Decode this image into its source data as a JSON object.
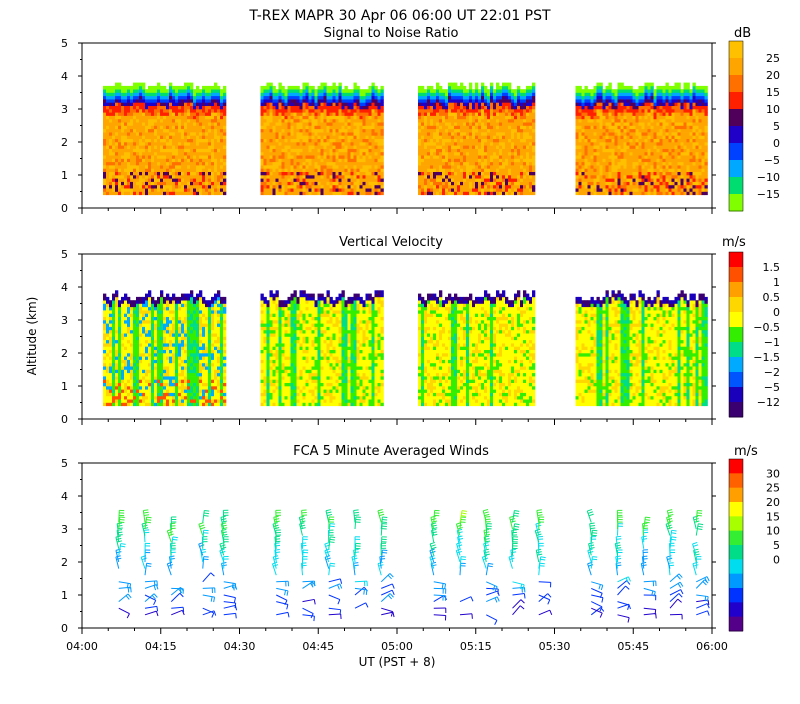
{
  "header": {
    "title": "T-REX  MAPR 30 Apr 06  06:00 UT  22:01  PST"
  },
  "x_axis": {
    "label": "UT  (PST + 8)",
    "ticks": [
      "04:00",
      "04:15",
      "04:30",
      "04:45",
      "05:00",
      "05:15",
      "05:30",
      "05:45",
      "06:00"
    ]
  },
  "y_axis": {
    "label": "Altitude (km)",
    "ticks": [
      "0",
      "1",
      "2",
      "3",
      "4",
      "5"
    ]
  },
  "colors": {
    "palette": [
      "#55007f",
      "#0000ff",
      "#00aaff",
      "#00e6aa",
      "#33ff33",
      "#99ff00",
      "#ffff00",
      "#ffd200",
      "#ffaa00",
      "#ff7f00",
      "#ff0000"
    ]
  },
  "chart_data": [
    {
      "type": "heatmap",
      "title": "Signal to Noise Ratio",
      "unit": "dB",
      "xlim": [
        "04:00",
        "06:00"
      ],
      "ylim": [
        0,
        5
      ],
      "data_gaps": [
        [
          "04:00",
          "04:07"
        ],
        [
          "04:30",
          "04:37"
        ],
        [
          "04:59",
          "05:07"
        ],
        [
          "05:29",
          "05:37"
        ]
      ],
      "colorbar": {
        "ticks": [
          "25",
          "20",
          "15",
          "10",
          "5",
          "0",
          "−5",
          "−10",
          "−15"
        ],
        "colors": [
          "#ffc000",
          "#ffa500",
          "#ff7000",
          "#ff2000",
          "#50005a",
          "#2000c8",
          "#0040ff",
          "#00a8ff",
          "#00dd70",
          "#7fff00"
        ]
      },
      "profile_top_km": 3.8,
      "typical_value_db": 20
    },
    {
      "type": "heatmap",
      "title": "Vertical Velocity",
      "unit": "m/s",
      "xlim": [
        "04:00",
        "06:00"
      ],
      "ylim": [
        0,
        5
      ],
      "data_gaps": [
        [
          "04:00",
          "04:07"
        ],
        [
          "04:30",
          "04:37"
        ],
        [
          "04:59",
          "05:07"
        ],
        [
          "05:29",
          "05:37"
        ]
      ],
      "colorbar": {
        "ticks": [
          "1.5",
          "1",
          "0.5",
          "0",
          "−0.5",
          "−1",
          "−1.5",
          "−2",
          "−5",
          "−12"
        ],
        "colors": [
          "#ff0000",
          "#ff5000",
          "#ffa000",
          "#ffd700",
          "#ffff00",
          "#33ee00",
          "#00dd88",
          "#00aaff",
          "#0055ff",
          "#1a00bb",
          "#3a0070"
        ]
      },
      "profile_top_km": 3.65,
      "typical_value_ms": 0
    },
    {
      "type": "scatter",
      "title": "FCA 5 Minute Averaged Winds",
      "unit": "m/s",
      "xlim": [
        "04:00",
        "06:00"
      ],
      "ylim": [
        0,
        5
      ],
      "colorbar": {
        "ticks": [
          "30",
          "25",
          "20",
          "15",
          "10",
          "5",
          "0"
        ],
        "colors": [
          "#ff0000",
          "#ff6000",
          "#ffa000",
          "#ffff00",
          "#a8ff00",
          "#33ee33",
          "#00dd88",
          "#00ddee",
          "#0099ff",
          "#0033ff",
          "#2200cc",
          "#550088"
        ]
      },
      "profile_times": [
        "04:07",
        "04:12",
        "04:17",
        "04:23",
        "04:27",
        "04:37",
        "04:42",
        "04:47",
        "04:52",
        "04:57",
        "05:07",
        "05:12",
        "05:17",
        "05:22",
        "05:27",
        "05:37",
        "05:42",
        "05:47",
        "05:52",
        "05:57"
      ],
      "altitudes_km": [
        0.4,
        0.6,
        0.8,
        1.0,
        1.2,
        1.4,
        1.6,
        1.8,
        2.0,
        2.2,
        2.4,
        2.6,
        2.8,
        3.0,
        3.2
      ],
      "speed_range_ms": [
        0,
        30
      ],
      "note": "Wind barbs colored by speed; low altitudes ~3 m/s increasing to ~15 m/s above 2.5 km."
    }
  ]
}
